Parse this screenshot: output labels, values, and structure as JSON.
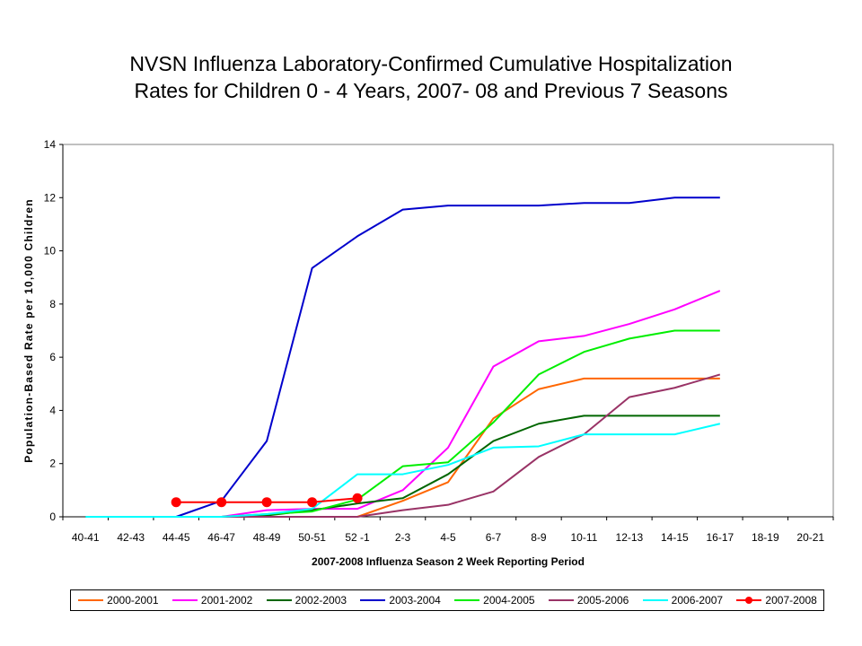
{
  "chart_data": {
    "type": "line",
    "title_lines": [
      "NVSN Influenza Laboratory-Confirmed Cumulative Hospitalization",
      "Rates for Children 0 - 4 Years, 2007- 08 and Previous 7 Seasons"
    ],
    "xlabel": "2007-2008 Influenza Season 2 Week Reporting Period",
    "ylabel": "Population-Based Rate per 10,000 Children",
    "ylim": [
      0,
      14
    ],
    "yticks": [
      0,
      2,
      4,
      6,
      8,
      10,
      12,
      14
    ],
    "categories": [
      "40-41",
      "42-43",
      "44-45",
      "46-47",
      "48-49",
      "50-51",
      "52 -1",
      "2-3",
      "4-5",
      "6-7",
      "8-9",
      "10-11",
      "12-13",
      "14-15",
      "16-17",
      "18-19",
      "20-21"
    ],
    "series": [
      {
        "name": "2000-2001",
        "color": "#FF6600",
        "marker": false,
        "values": [
          0,
          0,
          0,
          0,
          0,
          0,
          0,
          0.6,
          1.3,
          3.7,
          4.8,
          5.2,
          5.2,
          5.2,
          5.2,
          null,
          null
        ]
      },
      {
        "name": "2001-2002",
        "color": "#FF00FF",
        "marker": false,
        "values": [
          0,
          0,
          0,
          0,
          0.25,
          0.3,
          0.3,
          1.0,
          2.6,
          5.65,
          6.6,
          6.8,
          7.25,
          7.8,
          8.5,
          null,
          null
        ]
      },
      {
        "name": "2002-2003",
        "color": "#006600",
        "marker": false,
        "values": [
          0,
          0,
          0,
          0,
          0.05,
          0.25,
          0.5,
          0.7,
          1.6,
          2.85,
          3.5,
          3.8,
          3.8,
          3.8,
          3.8,
          null,
          null
        ]
      },
      {
        "name": "2003-2004",
        "color": "#0000CC",
        "marker": false,
        "values": [
          0,
          0,
          0,
          0.6,
          2.85,
          9.35,
          10.55,
          11.55,
          11.7,
          11.7,
          11.7,
          11.8,
          11.8,
          12.0,
          12.0,
          null,
          null
        ]
      },
      {
        "name": "2004-2005",
        "color": "#00EE00",
        "marker": false,
        "values": [
          0,
          0,
          0,
          0,
          0.1,
          0.2,
          0.65,
          1.9,
          2.05,
          3.55,
          5.35,
          6.2,
          6.7,
          7.0,
          7.0,
          null,
          null
        ]
      },
      {
        "name": "2005-2006",
        "color": "#993366",
        "marker": false,
        "values": [
          0,
          0,
          0,
          0,
          0,
          0,
          0,
          0.25,
          0.45,
          0.95,
          2.25,
          3.1,
          4.5,
          4.85,
          5.35,
          null,
          null
        ]
      },
      {
        "name": "2006-2007",
        "color": "#00FFFF",
        "marker": false,
        "values": [
          0,
          0,
          0,
          0,
          0.1,
          0.3,
          1.6,
          1.6,
          1.95,
          2.6,
          2.65,
          3.1,
          3.1,
          3.1,
          3.5,
          null,
          null
        ]
      },
      {
        "name": "2007-2008",
        "color": "#FF0000",
        "marker": true,
        "values": [
          null,
          null,
          0.55,
          0.55,
          0.55,
          0.55,
          0.7,
          null,
          null,
          null,
          null,
          null,
          null,
          null,
          null,
          null,
          null
        ]
      }
    ],
    "legend_position": "bottom"
  }
}
